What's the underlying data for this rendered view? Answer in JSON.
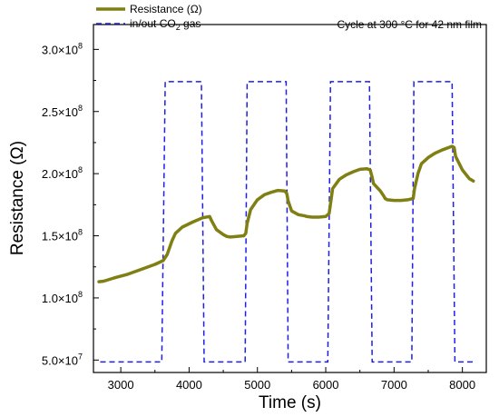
{
  "chart_data": {
    "type": "line",
    "xlabel": "Time (s)",
    "ylabel": "Resistance (Ω)",
    "xlim": [
      2600,
      8350
    ],
    "ylim": [
      40000000,
      320000000
    ],
    "x_ticks": [
      3000,
      4000,
      5000,
      6000,
      7000,
      8000
    ],
    "x_tick_labels": [
      "3000",
      "4000",
      "5000",
      "6000",
      "7000",
      "8000"
    ],
    "y_ticks": [
      50000000,
      100000000,
      150000000,
      200000000,
      250000000,
      300000000
    ],
    "y_tick_labels": [
      {
        "mant": "5.0×10",
        "exp": "7"
      },
      {
        "mant": "1.0×10",
        "exp": "8"
      },
      {
        "mant": "1.5×10",
        "exp": "8"
      },
      {
        "mant": "2.0×10",
        "exp": "8"
      },
      {
        "mant": "2.5×10",
        "exp": "8"
      },
      {
        "mant": "3.0×10",
        "exp": "8"
      }
    ],
    "grid": false,
    "legend_position": "top-left",
    "annotation": "Cycle at 300 °C for 42 nm film",
    "series": [
      {
        "name": "Resistance (Ω)",
        "style": "solid",
        "color": "#7f7f14",
        "x": [
          2680,
          2750,
          2900,
          3100,
          3300,
          3500,
          3620,
          3680,
          3750,
          3800,
          3900,
          4050,
          4200,
          4300,
          4330,
          4400,
          4500,
          4550,
          4600,
          4700,
          4800,
          4830,
          4850,
          4900,
          5000,
          5100,
          5200,
          5300,
          5400,
          5430,
          5450,
          5500,
          5600,
          5700,
          5720,
          5800,
          5900,
          6000,
          6050,
          6080,
          6100,
          6200,
          6300,
          6400,
          6500,
          6600,
          6650,
          6680,
          6700,
          6800,
          6850,
          6870,
          6900,
          7000,
          7100,
          7200,
          7280,
          7300,
          7350,
          7400,
          7500,
          7600,
          7700,
          7800,
          7850,
          7880,
          7900,
          8000,
          8100,
          8160
        ],
        "y": [
          113000000,
          113500000,
          116000000,
          119000000,
          123000000,
          127000000,
          130000000,
          135000000,
          146000000,
          152000000,
          157000000,
          161000000,
          164500000,
          165500000,
          162000000,
          155000000,
          151000000,
          149500000,
          149000000,
          149500000,
          150000000,
          152000000,
          160000000,
          171000000,
          179000000,
          183000000,
          185000000,
          186500000,
          186000000,
          184000000,
          178000000,
          170000000,
          167000000,
          166000000,
          165500000,
          165000000,
          165000000,
          165500000,
          168000000,
          180000000,
          188000000,
          195500000,
          199000000,
          201500000,
          203500000,
          204000000,
          203000000,
          197000000,
          192000000,
          186000000,
          182000000,
          180000000,
          179000000,
          178500000,
          178500000,
          179000000,
          180000000,
          188000000,
          200000000,
          208000000,
          213000000,
          216500000,
          219000000,
          221000000,
          222000000,
          221000000,
          214000000,
          203000000,
          196000000,
          194000000
        ]
      },
      {
        "name": "in/out CO₂ gas",
        "style": "dashed",
        "color": "#1f1fe6",
        "x": [
          2700,
          3600,
          3650,
          4180,
          4220,
          4820,
          4850,
          5420,
          5450,
          6030,
          6070,
          6640,
          6680,
          7260,
          7290,
          7850,
          7890,
          8160
        ],
        "y": [
          48500000,
          48500000,
          274000000,
          274000000,
          48500000,
          48500000,
          274000000,
          274000000,
          48500000,
          48500000,
          274000000,
          274000000,
          48500000,
          48500000,
          274000000,
          274000000,
          48500000,
          48500000
        ]
      }
    ]
  },
  "legend": {
    "resistance_label": "Resistance (Ω)",
    "gas_label_prefix": "in/out CO",
    "gas_label_sub": "2",
    "gas_label_suffix": " gas"
  },
  "colors": {
    "resistance": "#7f7f14",
    "gas": "#1f1fe6",
    "axis": "#000000"
  }
}
